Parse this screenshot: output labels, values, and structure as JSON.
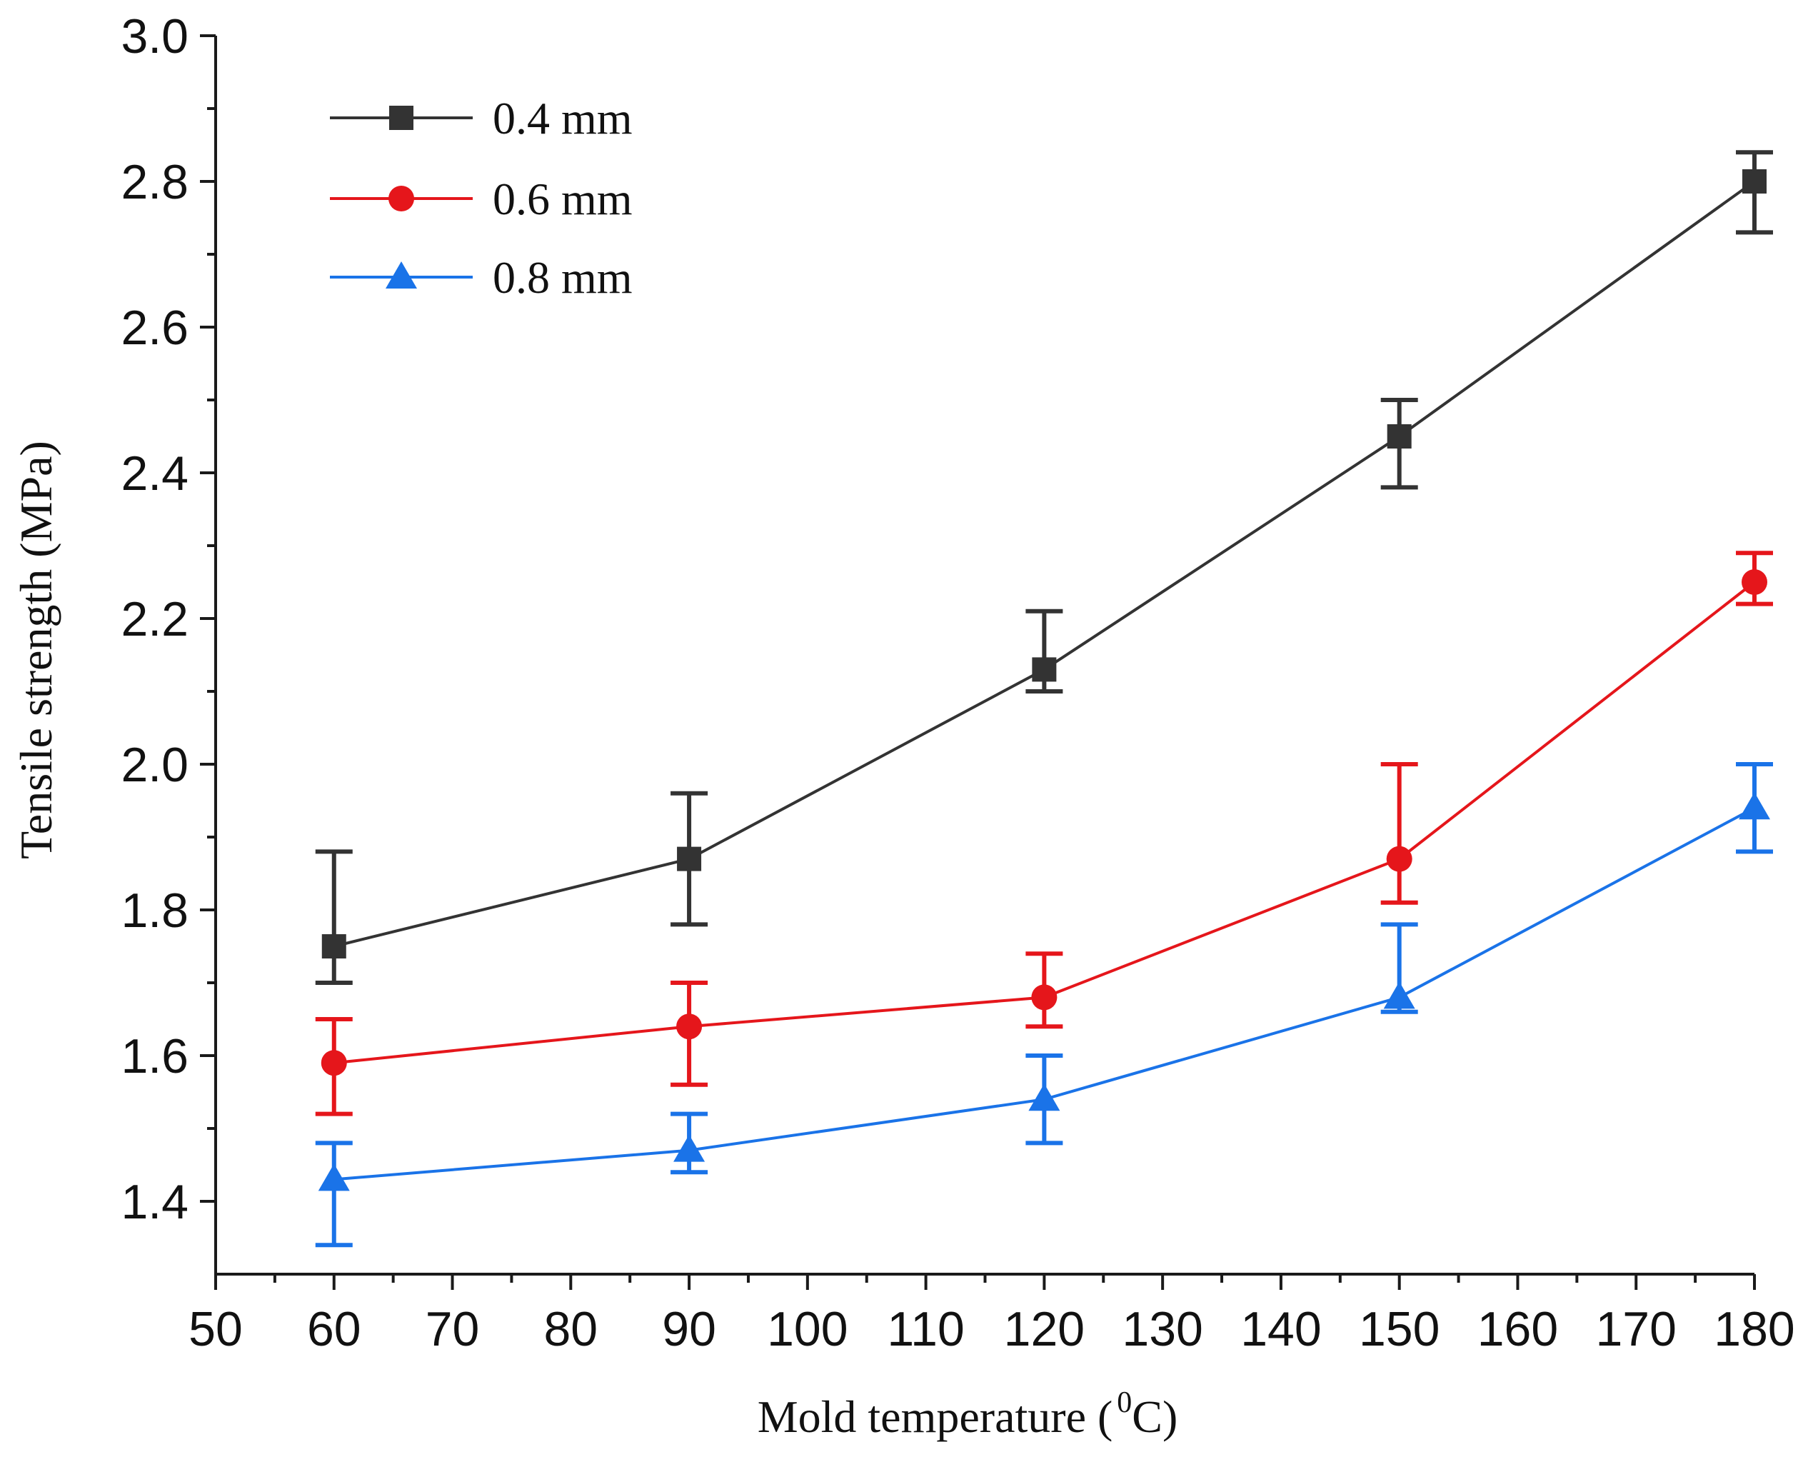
{
  "chart_data": {
    "type": "line",
    "xlabel_main": "Mold temperature (",
    "xlabel_sup": "0",
    "xlabel_unit": "C)",
    "ylabel": "Tensile strength (MPa)",
    "xlim": [
      50,
      180
    ],
    "ylim": [
      1.3,
      3.0
    ],
    "x_ticks": [
      "50",
      "60",
      "70",
      "80",
      "90",
      "100",
      "110",
      "120",
      "130",
      "140",
      "150",
      "160",
      "170",
      "180"
    ],
    "y_ticks": [
      "1.4",
      "1.6",
      "1.8",
      "2.0",
      "2.2",
      "2.4",
      "2.6",
      "2.8",
      "3.0"
    ],
    "x": [
      60,
      90,
      120,
      150,
      180
    ],
    "series": [
      {
        "name": "0.4 mm",
        "color": "#333333",
        "marker": "square",
        "values": [
          1.75,
          1.87,
          2.13,
          2.45,
          2.8
        ],
        "err_low": [
          1.7,
          1.78,
          2.1,
          2.38,
          2.73
        ],
        "err_high": [
          1.88,
          1.96,
          2.21,
          2.5,
          2.84
        ]
      },
      {
        "name": "0.6 mm",
        "color": "#e5161b",
        "marker": "circle",
        "values": [
          1.59,
          1.64,
          1.68,
          1.87,
          2.25
        ],
        "err_low": [
          1.52,
          1.56,
          1.64,
          1.81,
          2.22
        ],
        "err_high": [
          1.65,
          1.7,
          1.74,
          2.0,
          2.29
        ]
      },
      {
        "name": "0.8 mm",
        "color": "#1a73e8",
        "marker": "triangle",
        "values": [
          1.43,
          1.47,
          1.54,
          1.68,
          1.94
        ],
        "err_low": [
          1.34,
          1.44,
          1.48,
          1.66,
          1.88
        ],
        "err_high": [
          1.48,
          1.52,
          1.6,
          1.78,
          2.0
        ]
      }
    ]
  }
}
